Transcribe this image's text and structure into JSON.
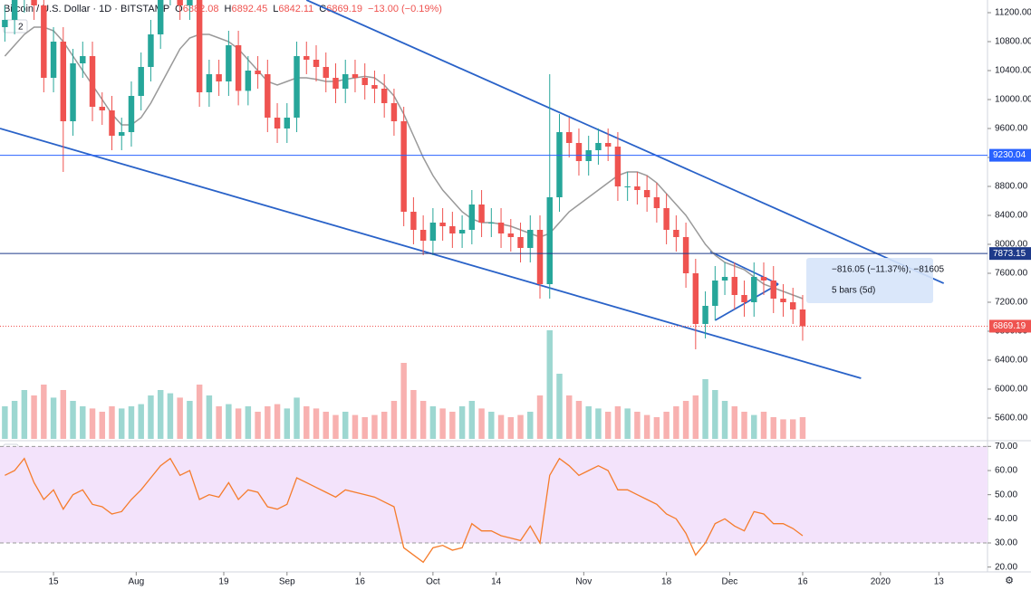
{
  "chart_data": {
    "type": "candlestick",
    "title": "Bitcoin / U.S. Dollar · 1D · BITSTAMP",
    "ohlc": [
      {
        "label": "O",
        "value": 6882.08
      },
      {
        "label": "H",
        "value": 6892.45
      },
      {
        "label": "L",
        "value": 6842.11
      },
      {
        "label": "C",
        "value": 6869.19
      }
    ],
    "change": "−13.00 (−0.19%)",
    "indicator_count": "2",
    "x": [
      "2019-07-05",
      "2019-07-07",
      "2019-07-09",
      "2019-07-11",
      "2019-07-13",
      "2019-07-15",
      "2019-07-17",
      "2019-07-19",
      "2019-07-21",
      "2019-07-23",
      "2019-07-25",
      "2019-07-27",
      "2019-07-29",
      "2019-07-31",
      "2019-08-02",
      "2019-08-04",
      "2019-08-06",
      "2019-08-08",
      "2019-08-10",
      "2019-08-12",
      "2019-08-14",
      "2019-08-16",
      "2019-08-18",
      "2019-08-20",
      "2019-08-22",
      "2019-08-24",
      "2019-08-26",
      "2019-08-28",
      "2019-08-30",
      "2019-09-01",
      "2019-09-03",
      "2019-09-05",
      "2019-09-07",
      "2019-09-09",
      "2019-09-11",
      "2019-09-13",
      "2019-09-15",
      "2019-09-17",
      "2019-09-19",
      "2019-09-21",
      "2019-09-23",
      "2019-09-25",
      "2019-09-27",
      "2019-09-29",
      "2019-10-01",
      "2019-10-03",
      "2019-10-05",
      "2019-10-07",
      "2019-10-09",
      "2019-10-11",
      "2019-10-13",
      "2019-10-15",
      "2019-10-17",
      "2019-10-19",
      "2019-10-21",
      "2019-10-23",
      "2019-10-25",
      "2019-10-27",
      "2019-10-29",
      "2019-10-31",
      "2019-11-02",
      "2019-11-04",
      "2019-11-06",
      "2019-11-08",
      "2019-11-10",
      "2019-11-12",
      "2019-11-14",
      "2019-11-16",
      "2019-11-18",
      "2019-11-20",
      "2019-11-22",
      "2019-11-24",
      "2019-11-26",
      "2019-11-28",
      "2019-11-30",
      "2019-12-02",
      "2019-12-04",
      "2019-12-06",
      "2019-12-08",
      "2019-12-10",
      "2019-12-12",
      "2019-12-14",
      "2019-12-16"
    ],
    "open": [
      11000,
      11100,
      11400,
      12100,
      11300,
      10300,
      10800,
      9700,
      10500,
      10600,
      9900,
      9850,
      9500,
      9550,
      10050,
      10450,
      10900,
      11500,
      11900,
      11300,
      11400,
      10100,
      10350,
      10250,
      10750,
      10120,
      10400,
      10350,
      9750,
      9600,
      9750,
      10600,
      10550,
      10450,
      10300,
      10150,
      10350,
      10300,
      10200,
      10150,
      9950,
      9700,
      8450,
      8200,
      8050,
      8300,
      8250,
      8150,
      8200,
      8550,
      8300,
      8300,
      8150,
      8100,
      7950,
      8200,
      7450,
      8650,
      9550,
      9400,
      9150,
      9300,
      9400,
      9350,
      8800,
      8800,
      8750,
      8650,
      8500,
      8200,
      8100,
      7600,
      6900,
      7150,
      7500,
      7550,
      7300,
      7200,
      7550,
      7500,
      7250,
      7200,
      7100
    ],
    "high": [
      11300,
      11600,
      12300,
      12300,
      11500,
      11000,
      11000,
      10700,
      10800,
      10800,
      10100,
      10050,
      9750,
      10250,
      10650,
      11100,
      11700,
      12100,
      12100,
      11600,
      11600,
      10550,
      10550,
      10950,
      10950,
      10600,
      10600,
      10550,
      9950,
      9950,
      10800,
      10800,
      10750,
      10650,
      10500,
      10550,
      10550,
      10500,
      10400,
      10350,
      10150,
      9900,
      8650,
      8400,
      8500,
      8500,
      8450,
      8400,
      8750,
      8750,
      8500,
      8500,
      8350,
      8300,
      8400,
      8400,
      10350,
      9800,
      9750,
      9600,
      9500,
      9600,
      9600,
      9550,
      9000,
      9000,
      8950,
      8850,
      8700,
      8400,
      8300,
      7800,
      7350,
      7700,
      7750,
      7750,
      7500,
      7750,
      7750,
      7700,
      7450,
      7400,
      7300
    ],
    "low": [
      10800,
      10900,
      11200,
      11100,
      10100,
      10100,
      9000,
      9500,
      10300,
      9700,
      9650,
      9300,
      9300,
      9350,
      9850,
      10250,
      10700,
      11300,
      11100,
      11100,
      9900,
      9900,
      10050,
      10050,
      9920,
      9920,
      10150,
      9550,
      9400,
      9400,
      9550,
      10350,
      10250,
      10100,
      9950,
      9950,
      10100,
      10000,
      9950,
      9750,
      9500,
      8250,
      8000,
      7850,
      7850,
      8050,
      7950,
      7950,
      8000,
      8100,
      8100,
      7950,
      7900,
      7750,
      7750,
      7250,
      7250,
      8450,
      9200,
      8950,
      8950,
      9100,
      9150,
      8600,
      8600,
      8550,
      8450,
      8300,
      8000,
      7900,
      7400,
      6550,
      6700,
      6950,
      7300,
      7100,
      7000,
      7000,
      7300,
      7050,
      7000,
      6900,
      6669
    ],
    "close": [
      11100,
      11400,
      12100,
      11300,
      10300,
      10800,
      9700,
      10500,
      10600,
      9900,
      9850,
      9500,
      9550,
      10050,
      10450,
      10900,
      11500,
      11900,
      11300,
      11400,
      10100,
      10350,
      10250,
      10750,
      10120,
      10400,
      10350,
      9750,
      9600,
      9750,
      10600,
      10550,
      10450,
      10300,
      10150,
      10350,
      10300,
      10200,
      10150,
      9950,
      9700,
      8450,
      8200,
      8050,
      8300,
      8250,
      8150,
      8200,
      8550,
      8300,
      8300,
      8150,
      8100,
      7950,
      8200,
      7450,
      8650,
      9550,
      9400,
      9150,
      9300,
      9400,
      9350,
      8800,
      8800,
      8750,
      8650,
      8500,
      8200,
      8100,
      7600,
      6900,
      7150,
      7500,
      7550,
      7300,
      7200,
      7550,
      7500,
      7250,
      7200,
      7100,
      6869.19
    ],
    "up_color": "#26a69a",
    "down_color": "#ef5350",
    "moving_average": {
      "color": "#999999",
      "values": [
        10600,
        10750,
        10900,
        11000,
        11000,
        10950,
        10800,
        10600,
        10400,
        10200,
        10000,
        9800,
        9650,
        9650,
        9750,
        9950,
        10200,
        10450,
        10700,
        10850,
        10900,
        10900,
        10850,
        10800,
        10700,
        10550,
        10400,
        10250,
        10200,
        10250,
        10300,
        10300,
        10280,
        10250,
        10250,
        10280,
        10300,
        10320,
        10300,
        10200,
        10050,
        9800,
        9500,
        9200,
        8950,
        8750,
        8600,
        8450,
        8350,
        8300,
        8300,
        8280,
        8250,
        8200,
        8150,
        8100,
        8150,
        8300,
        8450,
        8550,
        8650,
        8750,
        8850,
        8950,
        9000,
        9000,
        8950,
        8850,
        8700,
        8550,
        8400,
        8200,
        8000,
        7850,
        7750,
        7700,
        7650,
        7550,
        7450,
        7400,
        7350,
        7300,
        7250
      ]
    },
    "volume": [
      30,
      35,
      45,
      40,
      50,
      38,
      45,
      35,
      30,
      28,
      25,
      30,
      28,
      30,
      32,
      40,
      45,
      42,
      38,
      35,
      50,
      40,
      30,
      32,
      28,
      30,
      25,
      30,
      32,
      28,
      38,
      30,
      28,
      25,
      22,
      25,
      22,
      20,
      22,
      25,
      35,
      70,
      45,
      35,
      30,
      28,
      25,
      30,
      35,
      28,
      25,
      22,
      20,
      22,
      25,
      40,
      100,
      60,
      40,
      35,
      30,
      28,
      25,
      30,
      28,
      25,
      22,
      20,
      25,
      30,
      35,
      40,
      55,
      45,
      35,
      30,
      25,
      22,
      25,
      20,
      18,
      18,
      20
    ],
    "rsi": {
      "color": "#f57c2c",
      "band": [
        30,
        70
      ],
      "band_color": "#f3e3fb",
      "values": [
        58,
        60,
        65,
        55,
        48,
        52,
        44,
        50,
        52,
        46,
        45,
        42,
        43,
        48,
        52,
        57,
        62,
        65,
        58,
        60,
        48,
        50,
        49,
        55,
        48,
        52,
        51,
        45,
        44,
        46,
        57,
        55,
        53,
        51,
        49,
        52,
        51,
        50,
        49,
        47,
        45,
        28,
        25,
        22,
        28,
        29,
        27,
        28,
        38,
        35,
        35,
        33,
        32,
        31,
        37,
        30,
        58,
        65,
        62,
        58,
        60,
        62,
        60,
        52,
        52,
        50,
        48,
        46,
        42,
        40,
        34,
        25,
        30,
        38,
        40,
        37,
        35,
        43,
        42,
        38,
        38,
        36,
        33
      ],
      "ylim": [
        18,
        72
      ],
      "yticks": [
        {
          "value": 20,
          "label": "20.00"
        },
        {
          "value": 30,
          "label": "30.00"
        },
        {
          "value": 40,
          "label": "40.00"
        },
        {
          "value": 50,
          "label": "50.00"
        },
        {
          "value": 60,
          "label": "60.00"
        },
        {
          "value": 70,
          "label": "70.00"
        }
      ]
    },
    "xlim": [
      "2019-07-04",
      "2020-01-23"
    ],
    "xticks": [
      {
        "value": "2019-07-15",
        "label": "15"
      },
      {
        "value": "2019-08-01",
        "label": "Aug"
      },
      {
        "value": "2019-08-19",
        "label": "19"
      },
      {
        "value": "2019-09-01",
        "label": "Sep"
      },
      {
        "value": "2019-09-16",
        "label": "16"
      },
      {
        "value": "2019-10-01",
        "label": "Oct"
      },
      {
        "value": "2019-10-14",
        "label": "14"
      },
      {
        "value": "2019-11-01",
        "label": "Nov"
      },
      {
        "value": "2019-11-18",
        "label": "18"
      },
      {
        "value": "2019-12-01",
        "label": "Dec"
      },
      {
        "value": "2019-12-16",
        "label": "16"
      },
      {
        "value": "2020-01-01",
        "label": "2020"
      },
      {
        "value": "2020-01-13",
        "label": "13"
      }
    ],
    "ylim": [
      5400,
      11375
    ],
    "yticks": [
      {
        "value": 5600,
        "label": "5600.00"
      },
      {
        "value": 6000,
        "label": "6000.00"
      },
      {
        "value": 6400,
        "label": "6400.00"
      },
      {
        "value": 6800,
        "label": "6800.00"
      },
      {
        "value": 7200,
        "label": "7200.00"
      },
      {
        "value": 7600,
        "label": "7600.00"
      },
      {
        "value": 8000,
        "label": "8000.00"
      },
      {
        "value": 8400,
        "label": "8400.00"
      },
      {
        "value": 8800,
        "label": "8800.00"
      },
      {
        "value": 9200,
        "label": "9200.00"
      },
      {
        "value": 9600,
        "label": "9600.00"
      },
      {
        "value": 10000,
        "label": "10000.00"
      },
      {
        "value": 10400,
        "label": "10400.00"
      },
      {
        "value": 10800,
        "label": "10800.00"
      },
      {
        "value": 11200,
        "label": "11200.00"
      }
    ],
    "hlines": [
      {
        "value": 9230.04,
        "label": "9230.04",
        "color": "#2962ff"
      },
      {
        "value": 7873.15,
        "label": "7873.15",
        "color": "#1e3a8a"
      }
    ],
    "last_price": {
      "value": 6869.19,
      "label": "6869.19",
      "color": "#ef5350"
    },
    "trendlines": [
      {
        "from": [
          "2019-09-05",
          11375
        ],
        "to": [
          "2020-01-14",
          7462
        ],
        "color": "#2962c8"
      },
      {
        "from": [
          "2019-07-04",
          9600
        ],
        "to": [
          "2019-12-28",
          6150
        ],
        "color": "#2962c8"
      },
      {
        "from": [
          "2019-11-28",
          6950
        ],
        "to": [
          "2019-12-11",
          7450
        ],
        "color": "#2962c8"
      },
      {
        "from": [
          "2019-11-27",
          7900
        ],
        "to": [
          "2019-12-11",
          7450
        ],
        "color": "#2962c8"
      }
    ],
    "measure": {
      "range": "−816.05 (−11.37%), −81605",
      "bars": "5 bars (5d)"
    }
  }
}
